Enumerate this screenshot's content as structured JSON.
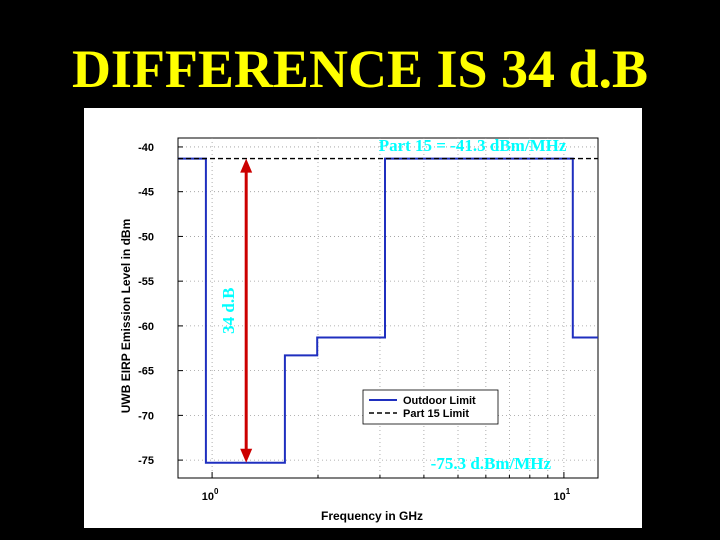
{
  "slide": {
    "title": "DIFFERENCE IS 34 d.B"
  },
  "colors": {
    "background": "#000000",
    "title": "#ffff00",
    "annotation": "#00ffff",
    "arrow": "#cc0000",
    "outdoor_limit": "#1f2fbf",
    "part15_limit": "#000000"
  },
  "chart_data": {
    "type": "line",
    "xlabel": "Frequency in GHz",
    "ylabel": "UWB EIRP Emission Level in dBm",
    "xscale": "log",
    "xlim": [
      0.8,
      12.5
    ],
    "ylim": [
      -77,
      -39
    ],
    "x_ticks": [
      {
        "value": 1,
        "base": "10",
        "exp": "0"
      },
      {
        "value": 10,
        "base": "10",
        "exp": "1"
      }
    ],
    "y_ticks": [
      "-40",
      "-45",
      "-50",
      "-55",
      "-60",
      "-65",
      "-70",
      "-75"
    ],
    "y_tick_values": [
      -40,
      -45,
      -50,
      -55,
      -60,
      -65,
      -70,
      -75
    ],
    "grid": true,
    "legend_position": "lower-right",
    "series": [
      {
        "name": "Outdoor Limit",
        "style": "solid",
        "x": [
          0.8,
          0.96,
          0.96,
          1.61,
          1.61,
          1.99,
          1.99,
          3.1,
          3.1,
          10.6,
          10.6,
          12.5
        ],
        "y": [
          -41.3,
          -41.3,
          -75.3,
          -75.3,
          -63.3,
          -63.3,
          -61.3,
          -61.3,
          -41.3,
          -41.3,
          -61.3,
          -61.3
        ]
      },
      {
        "name": "Part 15 Limit",
        "style": "dashed",
        "x": [
          0.8,
          12.5
        ],
        "y": [
          -41.3,
          -41.3
        ]
      }
    ],
    "annotations": [
      {
        "text": "Part 15 = -41.3 dBm/MHz",
        "x": 5.5,
        "y": -39.8
      },
      {
        "text": "-75.3 d.Bm/MHz",
        "x": 6.2,
        "y": -75.3
      },
      {
        "text": "34 d.B",
        "x": 1.25,
        "y": -58.3,
        "orientation": "vertical"
      }
    ],
    "arrow": {
      "x": 1.25,
      "y_from": -41.3,
      "y_to": -75.3,
      "double_headed": true
    }
  }
}
